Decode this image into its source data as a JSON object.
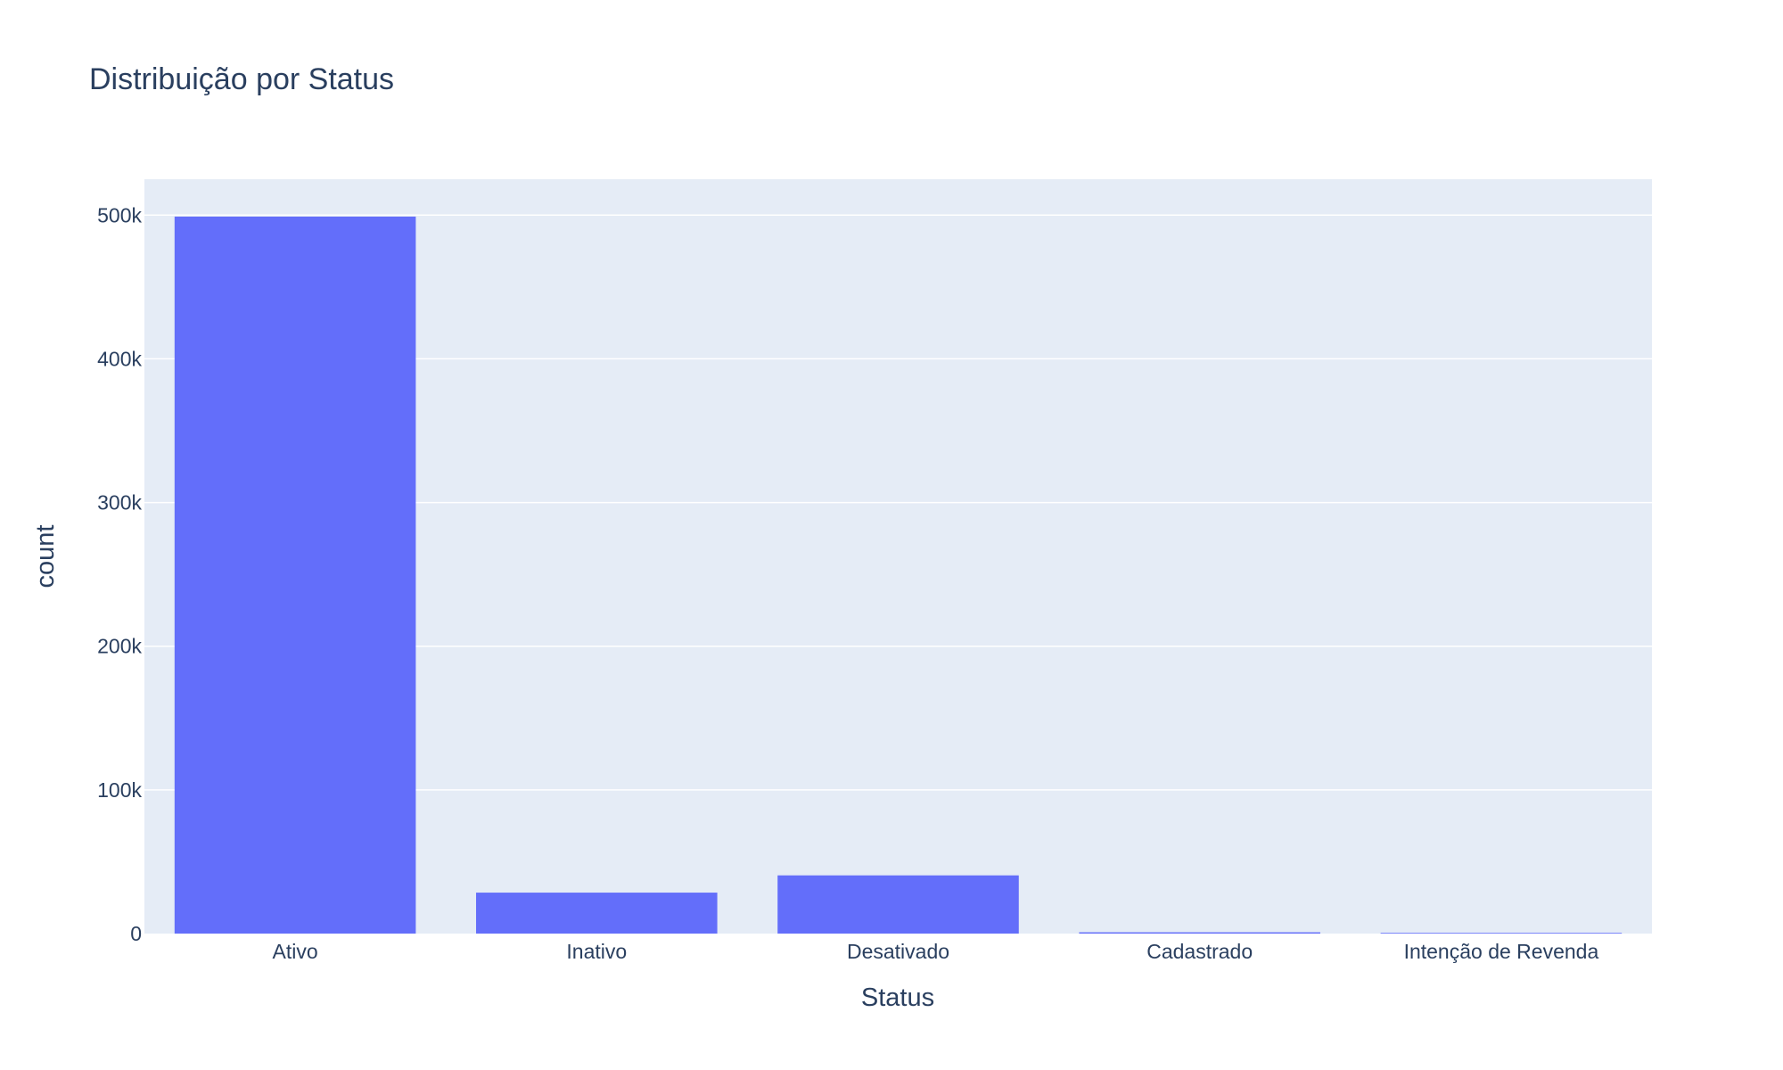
{
  "chart_data": {
    "type": "bar",
    "title": "Distribuição por Status",
    "xlabel": "Status",
    "ylabel": "count",
    "categories": [
      "Ativo",
      "Inativo",
      "Desativado",
      "Cadastrado",
      "Intenção de Revenda"
    ],
    "values": [
      499000,
      28500,
      40500,
      900,
      300
    ],
    "ylim": [
      0,
      525000
    ],
    "yticks": [
      0,
      100000,
      200000,
      300000,
      400000,
      500000
    ],
    "ytick_labels": [
      "0",
      "100k",
      "200k",
      "300k",
      "400k",
      "500k"
    ],
    "grid": true,
    "legend": "none",
    "colors": {
      "bar": "#636efa",
      "plot_bg": "#e5ecf6",
      "grid": "#ffffff",
      "text": "#2a3f5f"
    }
  }
}
